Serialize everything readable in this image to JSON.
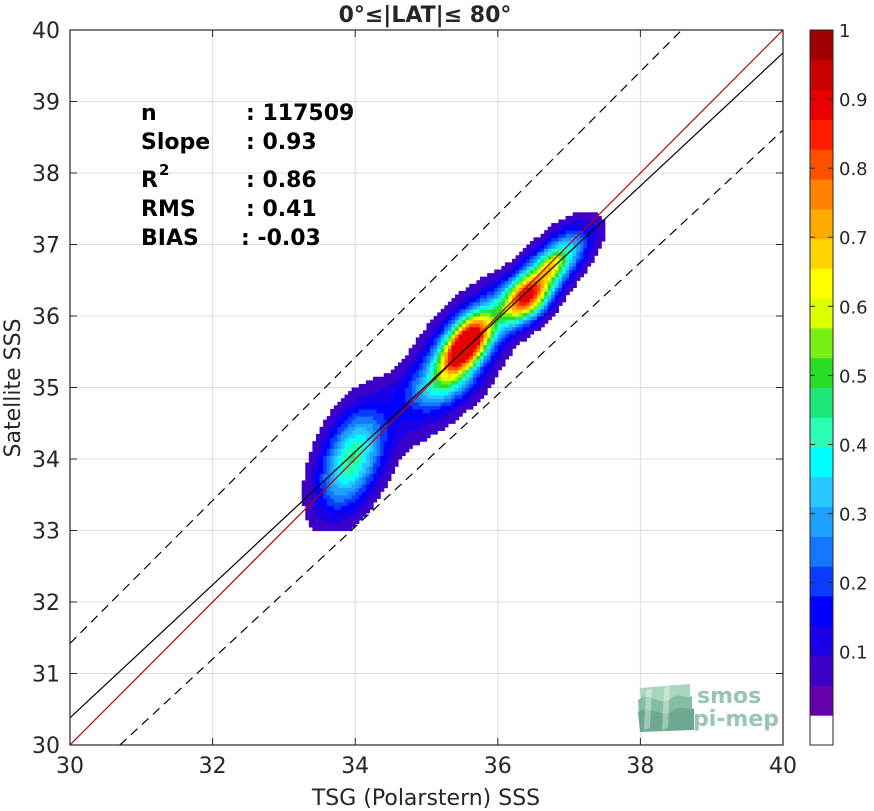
{
  "chart_data": {
    "type": "heatmap",
    "title": "0°≤|LAT|≤ 80°",
    "xlabel": "TSG (Polarstern) SSS",
    "ylabel": "Satellite SSS",
    "xlim": [
      30,
      40
    ],
    "ylim": [
      30,
      40
    ],
    "x_ticks": [
      "30",
      "32",
      "34",
      "36",
      "38",
      "40"
    ],
    "y_ticks": [
      "30",
      "31",
      "32",
      "33",
      "34",
      "35",
      "36",
      "37",
      "38",
      "39",
      "40"
    ],
    "grid": true,
    "stats": {
      "n_label": "n",
      "n_value": ": 117509",
      "slope_label": "Slope",
      "slope_value": ": 0.93",
      "r2_label": "R",
      "r2_sup": "2",
      "r2_value": ": 0.86",
      "rms_label": "RMS",
      "rms_value": ": 0.41",
      "bias_label": "BIAS",
      "bias_value": ": -0.03"
    },
    "lines": [
      {
        "kind": "identity",
        "color": "#c00000",
        "x": [
          30,
          40
        ],
        "y": [
          30,
          40
        ]
      },
      {
        "kind": "regression",
        "color": "#000000",
        "x": [
          30,
          40
        ],
        "y": [
          30.38,
          39.68
        ]
      },
      {
        "kind": "upper-bound",
        "color": "#000000",
        "dashed": true,
        "x": [
          30,
          40
        ],
        "y": [
          31.42,
          41.42
        ]
      },
      {
        "kind": "lower-bound",
        "color": "#000000",
        "dashed": true,
        "x": [
          30.7,
          40
        ],
        "y": [
          30,
          38.6
        ]
      }
    ],
    "density_peaks": [
      {
        "x": 33.95,
        "y": 34.0,
        "sx": 0.32,
        "sy": 0.5,
        "r": 0.45,
        "amp": 0.5
      },
      {
        "x": 35.55,
        "y": 35.6,
        "sx": 0.24,
        "sy": 0.3,
        "r": 0.6,
        "amp": 1.0
      },
      {
        "x": 35.4,
        "y": 35.4,
        "sx": 0.5,
        "sy": 0.6,
        "r": 0.7,
        "amp": 0.35
      },
      {
        "x": 35.15,
        "y": 35.0,
        "sx": 0.35,
        "sy": 0.18,
        "r": 0.2,
        "amp": 0.12
      },
      {
        "x": 36.4,
        "y": 36.25,
        "sx": 0.22,
        "sy": 0.22,
        "r": 0.3,
        "amp": 0.62
      },
      {
        "x": 36.55,
        "y": 36.45,
        "sx": 0.4,
        "sy": 0.4,
        "r": 0.8,
        "amp": 0.4
      },
      {
        "x": 36.85,
        "y": 36.85,
        "sx": 0.3,
        "sy": 0.3,
        "r": 0.6,
        "amp": 0.28
      },
      {
        "x": 36.75,
        "y": 36.7,
        "sx": 0.12,
        "sy": 0.12,
        "r": 0.5,
        "amp": 0.18
      }
    ],
    "colorbar": {
      "ticks": [
        "0.1",
        "0.2",
        "0.3",
        "0.4",
        "0.5",
        "0.6",
        "0.7",
        "0.8",
        "0.9",
        "1"
      ],
      "levels": [
        0,
        0.05,
        0.1,
        0.15,
        0.2,
        0.25,
        0.3,
        0.35,
        0.4,
        0.45,
        0.5,
        0.55,
        0.6,
        0.65,
        0.7,
        0.75,
        0.8,
        0.85,
        0.9,
        0.95,
        1.0
      ],
      "colors": [
        "#ffffff",
        "#6600a8",
        "#3c00c8",
        "#1a00e6",
        "#0000ff",
        "#0a3cff",
        "#1478ff",
        "#1ea0ff",
        "#28c8ff",
        "#00ffff",
        "#28ffb4",
        "#1ee678",
        "#28dc28",
        "#78f014",
        "#dcff00",
        "#ffff00",
        "#ffd200",
        "#ffaa00",
        "#ff8200",
        "#ff5000",
        "#ff1e00",
        "#e60000",
        "#c80000",
        "#a00000"
      ]
    },
    "logo": {
      "line1": "smos",
      "line2": "pi-mep"
    }
  }
}
